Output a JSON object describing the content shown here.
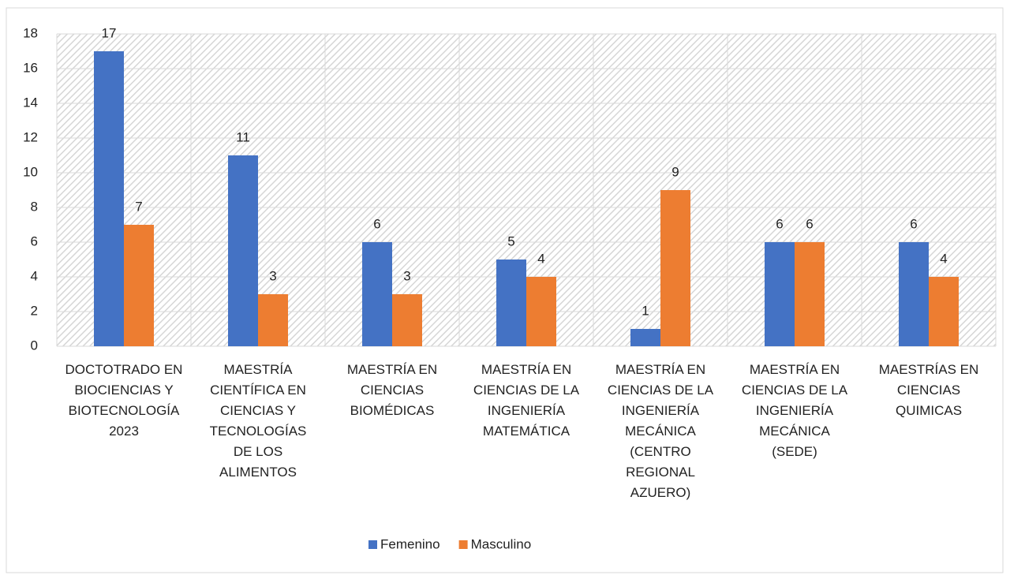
{
  "chart_data": {
    "type": "bar",
    "categories": [
      "DOCTOTRADO EN BIOCIENCIAS Y BIOTECNOLOGÍA 2023",
      "MAESTRÍA CIENTÍFICA EN CIENCIAS Y TECNOLOGÍAS DE LOS ALIMENTOS",
      "MAESTRÍA EN CIENCIAS BIOMÉDICAS",
      "MAESTRÍA EN CIENCIAS DE LA INGENIERÍA MATEMÁTICA",
      "MAESTRÍA EN CIENCIAS DE LA INGENIERÍA MECÁNICA (CENTRO REGIONAL AZUERO)",
      "MAESTRÍA EN CIENCIAS DE LA INGENIERÍA MECÁNICA (SEDE)",
      "MAESTRÍAS EN CIENCIAS QUIMICAS"
    ],
    "series": [
      {
        "name": "Femenino",
        "color": "#4472c4",
        "values": [
          17,
          11,
          6,
          5,
          1,
          6,
          6
        ]
      },
      {
        "name": "Masculino",
        "color": "#ed7d31",
        "values": [
          7,
          3,
          3,
          4,
          9,
          6,
          4
        ]
      }
    ],
    "ylim": [
      0,
      18
    ],
    "yticks": [
      0,
      2,
      4,
      6,
      8,
      10,
      12,
      14,
      16,
      18
    ],
    "grid": true,
    "legend": "bottom"
  }
}
